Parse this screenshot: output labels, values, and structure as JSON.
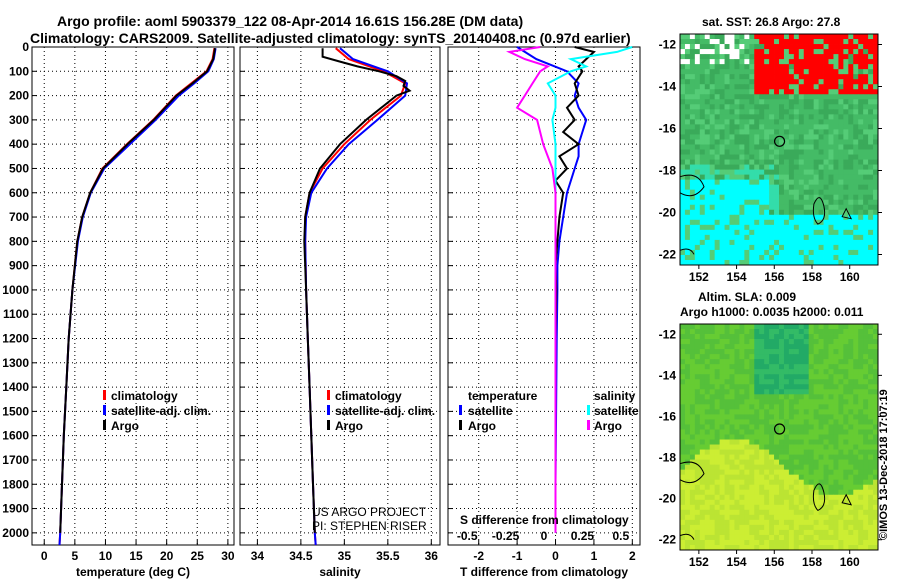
{
  "header": {
    "title_line1": "Argo profile: aoml 5903379_122 08-Apr-2014 16.61S 156.28E (DM data)",
    "title_line2": "Climatology: CARS2009. Satellite-adjusted climatology: synTS_20140408.nc (0.97d earlier)"
  },
  "colors": {
    "climatology": "#ff0000",
    "satellite": "#0000ff",
    "argo": "#000000",
    "sal_satellite": "#00ffff",
    "sal_argo": "#ff00ff"
  },
  "chart_data": [
    {
      "type": "line",
      "panel": "temperature",
      "xlabel": "temperature (deg C)",
      "ylabel": "depth",
      "xlim": [
        -2,
        31
      ],
      "ylim": [
        2050,
        0
      ],
      "x_ticks": [
        "0",
        "5",
        "10",
        "15",
        "20",
        "25",
        "30"
      ],
      "y_ticks": [
        "0",
        "100",
        "200",
        "300",
        "400",
        "500",
        "600",
        "700",
        "800",
        "900",
        "1000",
        "1100",
        "1200",
        "1300",
        "1400",
        "1500",
        "1600",
        "1700",
        "1800",
        "1900",
        "2000"
      ],
      "legend": [
        "climatology",
        "satellite-adj. clim.",
        "Argo"
      ],
      "series": [
        {
          "name": "climatology",
          "depth": [
            5,
            50,
            100,
            150,
            200,
            300,
            400,
            500,
            600,
            700,
            800,
            1000,
            1200,
            1400,
            1600,
            1800,
            2000,
            2050
          ],
          "values": [
            27.8,
            27.5,
            26.5,
            24.0,
            21.5,
            17.8,
            13.5,
            9.5,
            7.5,
            6.2,
            5.4,
            4.6,
            4.0,
            3.6,
            3.2,
            2.9,
            2.6,
            2.5
          ]
        },
        {
          "name": "satellite-adj. clim.",
          "depth": [
            5,
            50,
            100,
            150,
            200,
            300,
            400,
            500,
            600,
            700,
            800,
            1000,
            1200,
            1400,
            1600,
            1800,
            2000,
            2050
          ],
          "values": [
            28.0,
            27.7,
            26.8,
            24.5,
            22.0,
            18.2,
            14.0,
            9.8,
            7.6,
            6.3,
            5.5,
            4.6,
            4.0,
            3.6,
            3.2,
            2.9,
            2.6,
            2.5
          ]
        },
        {
          "name": "Argo",
          "depth": [
            5,
            50,
            100,
            150,
            200,
            300,
            400,
            500,
            600,
            700,
            800,
            1000,
            1200,
            1400,
            1600,
            1800,
            2000
          ],
          "values": [
            27.9,
            27.6,
            26.6,
            24.2,
            21.6,
            17.9,
            13.6,
            9.6,
            7.5,
            6.2,
            5.4,
            4.6,
            4.0,
            3.6,
            3.2,
            2.9,
            2.6
          ]
        }
      ]
    },
    {
      "type": "line",
      "panel": "salinity",
      "xlabel": "salinity",
      "ylabel": "depth",
      "xlim": [
        33.8,
        36.1
      ],
      "ylim": [
        2050,
        0
      ],
      "x_ticks": [
        "34",
        "34.5",
        "35",
        "35.5",
        "36"
      ],
      "legend": [
        "climatology",
        "satellite-adj. clim.",
        "Argo"
      ],
      "annotations": [
        "US ARGO PROJECT",
        "PI: STEPHEN RISER"
      ],
      "series": [
        {
          "name": "climatology",
          "depth": [
            5,
            50,
            100,
            150,
            200,
            300,
            400,
            500,
            600,
            700,
            800,
            1000,
            1200,
            1400,
            1600,
            1800,
            2000,
            2050
          ],
          "values": [
            34.9,
            35.05,
            35.45,
            35.7,
            35.65,
            35.3,
            35.0,
            34.75,
            34.6,
            34.55,
            34.55,
            34.56,
            34.58,
            34.6,
            34.62,
            34.64,
            34.66,
            34.67
          ]
        },
        {
          "name": "satellite-adj. clim.",
          "depth": [
            5,
            50,
            100,
            150,
            200,
            300,
            400,
            500,
            600,
            700,
            800,
            1000,
            1200,
            1400,
            1600,
            1800,
            2000,
            2050
          ],
          "values": [
            34.95,
            35.1,
            35.5,
            35.72,
            35.7,
            35.38,
            35.05,
            34.8,
            34.62,
            34.56,
            34.55,
            34.56,
            34.58,
            34.6,
            34.62,
            34.64,
            34.66,
            34.67
          ]
        },
        {
          "name": "Argo",
          "depth": [
            5,
            40,
            60,
            80,
            100,
            120,
            140,
            160,
            180,
            200,
            300,
            400,
            500,
            600,
            700,
            800,
            1000,
            1200,
            1400,
            1600,
            1800,
            2000
          ],
          "values": [
            34.75,
            34.75,
            34.95,
            35.15,
            35.4,
            35.6,
            35.7,
            35.68,
            35.75,
            35.6,
            35.25,
            34.95,
            34.72,
            34.6,
            34.55,
            34.54,
            34.56,
            34.58,
            34.6,
            34.62,
            34.64,
            34.66
          ]
        }
      ]
    },
    {
      "type": "line",
      "panel": "difference",
      "xlabel": "T difference from climatology",
      "xlabel_top": "S difference from climatology",
      "xlim": [
        -2.8,
        2.2
      ],
      "ylim": [
        2050,
        0
      ],
      "x_ticks": [
        "-2",
        "-1",
        "0",
        "1",
        "2"
      ],
      "x_ticks_top": [
        "-0.5",
        "-0.25",
        "0",
        "0.25",
        "0.5"
      ],
      "legend_left_title": "temperature",
      "legend_right_title": "salinity",
      "legend_left": [
        "satellite",
        "Argo"
      ],
      "legend_right": [
        "satellite",
        "Argo"
      ],
      "series": [
        {
          "name": "temperature satellite",
          "depth": [
            0,
            50,
            100,
            150,
            200,
            250,
            300,
            350,
            400,
            450,
            500,
            600,
            700,
            800,
            900,
            1000,
            1200,
            1400,
            1600,
            1800,
            2000
          ],
          "values": [
            -1.0,
            -0.5,
            0.3,
            0.6,
            0.5,
            0.6,
            0.8,
            0.7,
            0.6,
            0.6,
            0.5,
            0.3,
            0.2,
            0.1,
            0.05,
            0.05,
            0.03,
            0.02,
            0.01,
            0.0,
            0.0
          ]
        },
        {
          "name": "temperature Argo",
          "depth": [
            0,
            20,
            50,
            80,
            100,
            150,
            200,
            250,
            300,
            350,
            400,
            450,
            500,
            550,
            600,
            700,
            800,
            900,
            1000,
            1200,
            1400,
            1600,
            1800,
            2000
          ],
          "values": [
            0.5,
            1.0,
            0.8,
            0.6,
            0.7,
            0.5,
            0.6,
            0.3,
            0.5,
            0.2,
            0.6,
            0.1,
            0.3,
            0.0,
            0.2,
            0.1,
            0.05,
            0.0,
            0.02,
            0.0,
            0.0,
            0.0,
            0.0,
            0.0
          ]
        },
        {
          "name": "salinity satellite",
          "depth": [
            0,
            20,
            50,
            80,
            100,
            150,
            200,
            250,
            300,
            400,
            500,
            600,
            800,
            1000,
            1200,
            1400,
            1600,
            1800,
            2000
          ],
          "values": [
            0.5,
            0.4,
            0.1,
            0.2,
            0.1,
            -0.05,
            0.0,
            0.0,
            -0.02,
            0.0,
            0.0,
            0.0,
            0.0,
            0.0,
            0.0,
            0.0,
            0.0,
            0.0,
            0.0
          ]
        },
        {
          "name": "salinity Argo",
          "depth": [
            0,
            20,
            50,
            80,
            100,
            150,
            200,
            250,
            300,
            400,
            500,
            600,
            700,
            800,
            1000,
            1200,
            1400,
            1600,
            1800,
            2000
          ],
          "values": [
            -0.1,
            -0.3,
            -0.2,
            -0.05,
            -0.1,
            -0.15,
            -0.2,
            -0.25,
            -0.12,
            -0.08,
            -0.02,
            0.0,
            0.0,
            0.0,
            0.0,
            0.0,
            0.0,
            0.0,
            0.0,
            0.0
          ]
        }
      ]
    },
    {
      "type": "heatmap",
      "panel": "sst_map",
      "title": "sat. SST: 26.8 Argo: 27.8",
      "xlim": [
        151,
        161.5
      ],
      "ylim": [
        -22.5,
        -11.5
      ],
      "x_ticks": [
        "152",
        "154",
        "156",
        "158",
        "160"
      ],
      "y_ticks": [
        "-12",
        "-14",
        "-16",
        "-18",
        "-20",
        "-22"
      ],
      "profile_location": [
        156.28,
        -16.61
      ]
    },
    {
      "type": "heatmap",
      "panel": "sla_map",
      "title": "Altim. SLA: 0.009",
      "subtitle": "Argo h1000: 0.0035 h2000: 0.011",
      "xlim": [
        151,
        161.5
      ],
      "ylim": [
        -22.5,
        -11.5
      ],
      "x_ticks": [
        "152",
        "154",
        "156",
        "158",
        "160"
      ],
      "y_ticks": [
        "-12",
        "-14",
        "-16",
        "-18",
        "-20",
        "-22"
      ],
      "profile_location": [
        156.28,
        -16.61
      ]
    }
  ],
  "footer": {
    "imos_stamp": "©IMOS 13-Dec-2018 17:07:19"
  }
}
